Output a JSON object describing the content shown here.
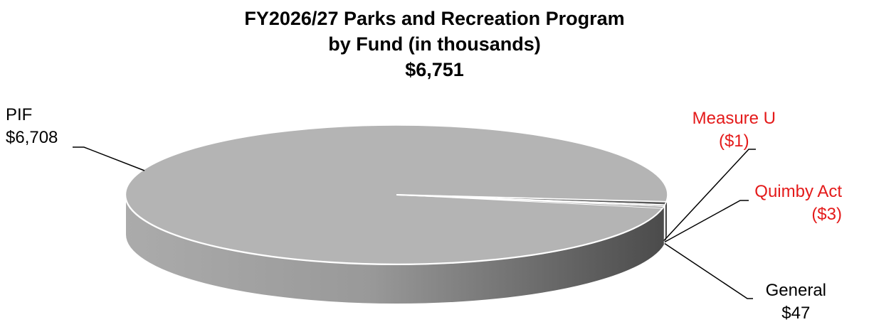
{
  "chart_data": {
    "type": "pie",
    "title": "FY2026/27 Parks and Recreation Program",
    "subtitle": "by Fund (in thousands)",
    "total": "$6,751",
    "slices": [
      {
        "name": "PIF",
        "value": 6708,
        "display": "$6,708",
        "color": "#b4b4b4",
        "label_color": "#000000"
      },
      {
        "name": "General",
        "value": 47,
        "display": "$47",
        "color": "#5a5a5a",
        "label_color": "#000000"
      },
      {
        "name": "Quimby Act",
        "value": -3,
        "display": "($3)",
        "color": "#8a8a8a",
        "label_color": "#e41a1a"
      },
      {
        "name": "Measure U",
        "value": -1,
        "display": "($1)",
        "color": "#9a9a9a",
        "label_color": "#e41a1a"
      }
    ],
    "legend": "none"
  }
}
